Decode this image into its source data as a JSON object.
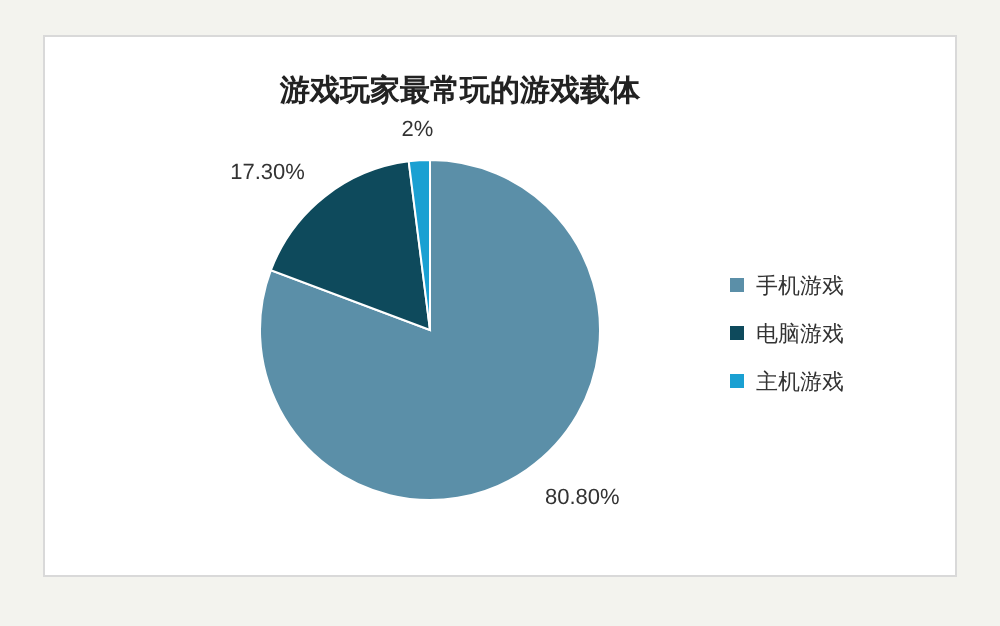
{
  "chart_data": {
    "type": "pie",
    "title": "游戏玩家最常玩的游戏载体",
    "categories": [
      "手机游戏",
      "电脑游戏",
      "主机游戏"
    ],
    "values": [
      80.8,
      17.3,
      2
    ],
    "value_labels": [
      "80.80%",
      "17.30%",
      "2%"
    ],
    "colors": [
      "#5b8fa8",
      "#0e4a5c",
      "#1aa0d2"
    ],
    "legend": "right"
  }
}
